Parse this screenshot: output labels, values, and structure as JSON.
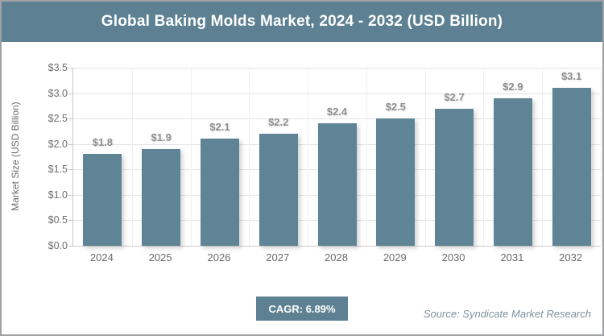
{
  "header": {
    "title": "Global Baking Molds Market, 2024 - 2032 (USD Billion)"
  },
  "chart_data": {
    "type": "bar",
    "title": "Global Baking Molds Market, 2024 - 2032 (USD Billion)",
    "categories": [
      "2024",
      "2025",
      "2026",
      "2027",
      "2028",
      "2029",
      "2030",
      "2031",
      "2032"
    ],
    "values": [
      1.8,
      1.9,
      2.1,
      2.2,
      2.4,
      2.5,
      2.7,
      2.9,
      3.1
    ],
    "bar_labels": [
      "$1.8",
      "$1.9",
      "$2.1",
      "$2.2",
      "$2.4",
      "$2.5",
      "$2.7",
      "$2.9",
      "$3.1"
    ],
    "xlabel": "",
    "ylabel": "Market Size (USD Billion)",
    "ylim": [
      0,
      3.5
    ],
    "yticks": [
      {
        "value": 0.0,
        "label": "$0.0"
      },
      {
        "value": 0.5,
        "label": "$0.5"
      },
      {
        "value": 1.0,
        "label": "$1.0"
      },
      {
        "value": 1.5,
        "label": "$1.5"
      },
      {
        "value": 2.0,
        "label": "$2.0"
      },
      {
        "value": 2.5,
        "label": "$2.5"
      },
      {
        "value": 3.0,
        "label": "$3.0"
      },
      {
        "value": 3.5,
        "label": "$3.5"
      }
    ],
    "grid": true,
    "legend": "none",
    "bar_color": "#5e8496"
  },
  "footer": {
    "cagr_label": "CAGR: 6.89%",
    "source": "Source: Syndicate Market Research"
  },
  "colors": {
    "header_bg": "#5d8192",
    "bar": "#5e8496",
    "badge_bg": "#5d8192",
    "gridline": "#e3e3e3",
    "axis_text": "#6e6e6e",
    "data_label": "#8f8f8f",
    "source_text": "#7e929f",
    "frame_border": "#a0a1a3"
  }
}
